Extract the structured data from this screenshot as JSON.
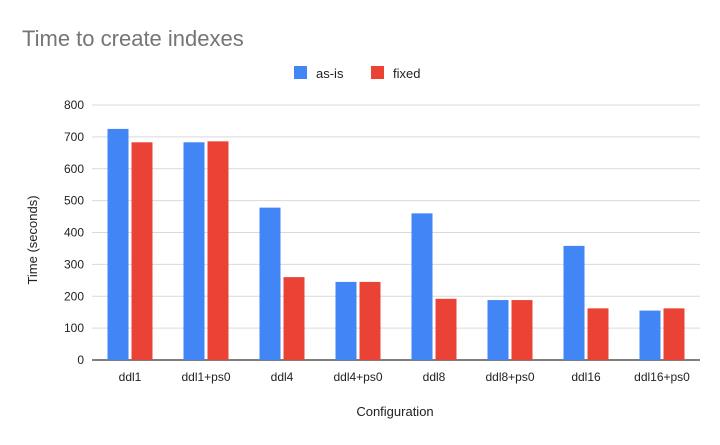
{
  "chart_data": {
    "type": "bar",
    "title": "Time to create indexes",
    "xlabel": "Configuration",
    "ylabel": "Time (seconds)",
    "ylim": [
      0,
      800
    ],
    "yticks": [
      0,
      100,
      200,
      300,
      400,
      500,
      600,
      700,
      800
    ],
    "grid": true,
    "legend_position": "top",
    "categories": [
      "ddl1",
      "ddl1+ps0",
      "ddl4",
      "ddl4+ps0",
      "ddl8",
      "ddl8+ps0",
      "ddl16",
      "ddl16+ps0"
    ],
    "series": [
      {
        "name": "as-is",
        "color": "#4285f4",
        "values": [
          725,
          683,
          478,
          245,
          460,
          188,
          358,
          155
        ]
      },
      {
        "name": "fixed",
        "color": "#ea4335",
        "values": [
          683,
          686,
          260,
          245,
          192,
          188,
          162,
          162
        ]
      }
    ]
  }
}
